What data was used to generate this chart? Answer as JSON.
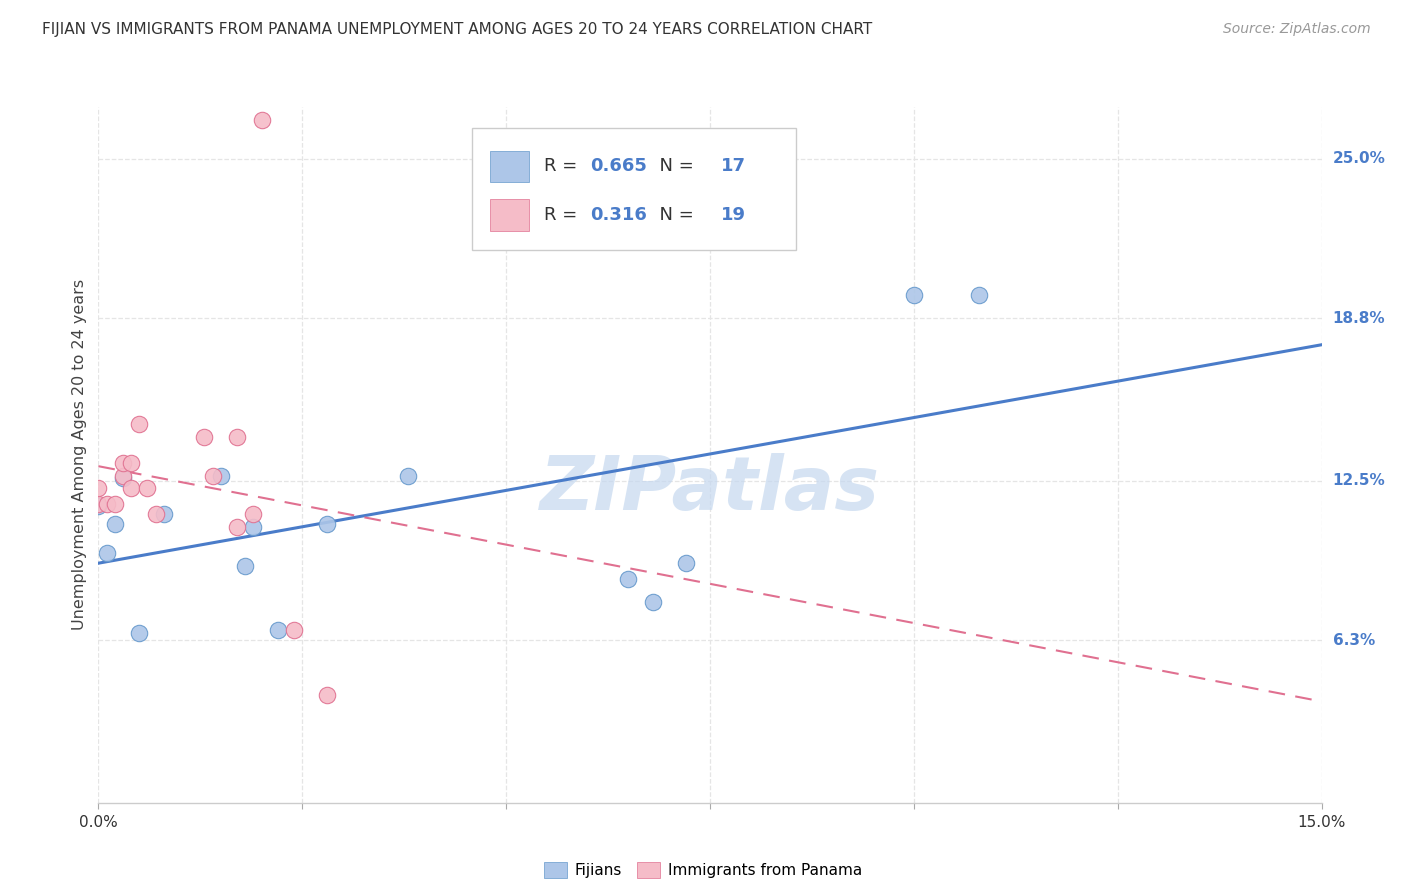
{
  "title": "FIJIAN VS IMMIGRANTS FROM PANAMA UNEMPLOYMENT AMONG AGES 20 TO 24 YEARS CORRELATION CHART",
  "source": "Source: ZipAtlas.com",
  "ylabel": "Unemployment Among Ages 20 to 24 years",
  "xlim": [
    0.0,
    0.15
  ],
  "ylim": [
    0.0,
    0.27
  ],
  "y_tick_vals": [
    0.063,
    0.125,
    0.188,
    0.25
  ],
  "y_tick_labels": [
    "6.3%",
    "12.5%",
    "18.8%",
    "25.0%"
  ],
  "fijian_R": "0.665",
  "fijian_N": "17",
  "panama_R": "0.316",
  "panama_N": "19",
  "fijian_color": "#adc6e8",
  "panama_color": "#f5bcc8",
  "fijian_edge_color": "#6699cc",
  "panama_edge_color": "#e07090",
  "fijian_line_color": "#4a7cc9",
  "panama_line_color": "#e07090",
  "legend_value_color": "#4a7cc9",
  "fijian_points_x": [
    0.0,
    0.001,
    0.002,
    0.003,
    0.005,
    0.008,
    0.015,
    0.018,
    0.019,
    0.022,
    0.028,
    0.038,
    0.065,
    0.068,
    0.072,
    0.1,
    0.108
  ],
  "fijian_points_y": [
    0.115,
    0.097,
    0.108,
    0.126,
    0.066,
    0.112,
    0.127,
    0.092,
    0.107,
    0.067,
    0.108,
    0.127,
    0.087,
    0.078,
    0.093,
    0.197,
    0.197
  ],
  "panama_points_x": [
    0.0,
    0.0,
    0.001,
    0.002,
    0.003,
    0.003,
    0.004,
    0.004,
    0.005,
    0.006,
    0.007,
    0.013,
    0.014,
    0.017,
    0.017,
    0.019,
    0.02,
    0.024,
    0.028
  ],
  "panama_points_y": [
    0.116,
    0.122,
    0.116,
    0.116,
    0.127,
    0.132,
    0.122,
    0.132,
    0.147,
    0.122,
    0.112,
    0.142,
    0.127,
    0.142,
    0.107,
    0.112,
    0.265,
    0.067,
    0.042
  ],
  "watermark": "ZIPatlas",
  "watermark_color": "#c5d8ef",
  "background_color": "#ffffff",
  "grid_color": "#e5e5e5"
}
